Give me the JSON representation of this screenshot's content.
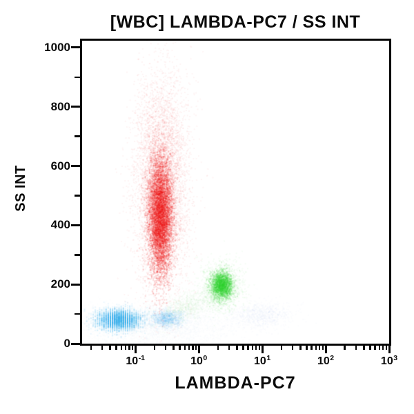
{
  "title": "[WBC] LAMBDA-PC7 / SS INT",
  "chart_data": {
    "type": "scatter",
    "subtype": "flow-cytometry-dot-plot",
    "title": "[WBC] LAMBDA-PC7 / SS INT",
    "xlabel": "LAMBDA-PC7",
    "ylabel": "SS INT",
    "x_scale": "log",
    "x_log_range": [
      -1.84,
      3
    ],
    "x_tick_base": "10",
    "x_tick_exponents": [
      "-1",
      "0",
      "1",
      "2",
      "3"
    ],
    "y_scale": "linear",
    "ylim": [
      0,
      1023
    ],
    "y_major_ticks": [
      0,
      200,
      400,
      600,
      800,
      1000
    ],
    "y_minor_ticks": [
      100,
      300,
      500,
      700,
      900
    ],
    "grid": false,
    "legend": "none",
    "background_color": "#ffffff",
    "axis_color": "#070707",
    "populations": [
      {
        "name": "bottom-debris-haze",
        "color": "#9fc3de",
        "n": 2600,
        "alpha": 0.028,
        "center_x": 0.2,
        "center_y": 62,
        "sigma_log_x": 0.62,
        "sigma_y": 36,
        "size": 2
      },
      {
        "name": "faint-right-blue-haze",
        "color": "#aecbe2",
        "n": 750,
        "alpha": 0.05,
        "center_x": 9.5,
        "center_y": 95,
        "sigma_log_x": 0.24,
        "sigma_y": 22,
        "size": 2
      },
      {
        "name": "granulocytes-red-halo",
        "color": "#f11212",
        "n": 6200,
        "alpha": 0.05,
        "center_x": 0.26,
        "center_y": 540,
        "sigma_log_x": 0.21,
        "sigma_y": 175,
        "size": 2
      },
      {
        "name": "granulocytes-red-core",
        "color": "#ee1010",
        "n": 6500,
        "alpha": 0.15,
        "center_x": 0.25,
        "center_y": 430,
        "sigma_log_x": 0.095,
        "sigma_y": 100,
        "size": 2
      },
      {
        "name": "faint-green-trail",
        "color": "#63d463",
        "n": 850,
        "alpha": 0.04,
        "center_x": 0.65,
        "center_y": 125,
        "sigma_log_x": 0.24,
        "sigma_y": 30,
        "corr": 0.55,
        "size": 2
      },
      {
        "name": "lymphocytes-blue-trail",
        "color": "#55b4ec",
        "n": 1100,
        "alpha": 0.065,
        "center_x": 0.32,
        "center_y": 85,
        "sigma_log_x": 0.13,
        "sigma_y": 14,
        "size": 2
      },
      {
        "name": "lymphocytes-blue-core",
        "color": "#38acee",
        "n": 4200,
        "alpha": 0.1,
        "center_x": 0.055,
        "center_y": 80,
        "sigma_log_x": 0.17,
        "sigma_y": 17,
        "quantize_log_x": 0.034,
        "size": 2
      },
      {
        "name": "lambda-positive-green-halo",
        "color": "#3bd43b",
        "n": 1300,
        "alpha": 0.05,
        "center_x": 2.3,
        "center_y": 195,
        "sigma_log_x": 0.16,
        "sigma_y": 40,
        "size": 2
      },
      {
        "name": "lambda-positive-green-core",
        "color": "#2ccf2c",
        "n": 2400,
        "alpha": 0.13,
        "center_x": 2.3,
        "center_y": 196,
        "sigma_log_x": 0.082,
        "sigma_y": 23,
        "size": 2
      }
    ]
  }
}
